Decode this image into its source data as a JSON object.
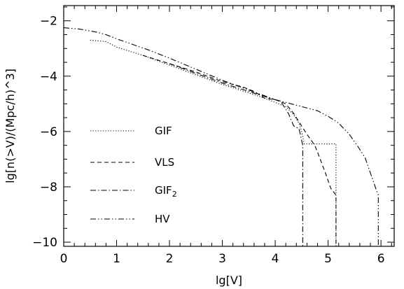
{
  "chart_data": {
    "type": "line",
    "title": "",
    "xlabel": "lg[V]",
    "ylabel": "lg[n(>V)/(Mpc/h)^3]",
    "xlim": [
      0,
      6.25
    ],
    "ylim": [
      -10.15,
      -1.45
    ],
    "xticks": [
      0,
      1,
      2,
      3,
      4,
      5,
      6
    ],
    "xtick_labels": [
      "0",
      "1",
      "2",
      "3",
      "4",
      "5",
      "6"
    ],
    "yticks": [
      -10,
      -8,
      -6,
      -4,
      -2
    ],
    "ytick_labels": [
      "−10",
      "−8",
      "−6",
      "−4",
      "−2"
    ],
    "grid": false,
    "legend_position": "lower-left",
    "legend": [
      {
        "name": "GIF",
        "sub": ""
      },
      {
        "name": "VLS",
        "sub": ""
      },
      {
        "name": "GIF",
        "sub": "2"
      },
      {
        "name": "HV",
        "sub": ""
      }
    ],
    "series": [
      {
        "style": "dotted",
        "x": [
          0.5,
          0.8,
          1.0,
          1.5,
          2.0,
          2.5,
          3.0,
          3.5,
          3.8,
          4.0,
          4.2,
          4.35,
          4.45,
          4.5,
          4.55,
          5.15,
          5.15
        ],
        "y": [
          -2.7,
          -2.75,
          -2.95,
          -3.25,
          -3.6,
          -3.95,
          -4.3,
          -4.6,
          -4.8,
          -4.95,
          -5.1,
          -5.4,
          -5.7,
          -6.0,
          -6.45,
          -6.45,
          -10.15
        ]
      },
      {
        "style": "dashed",
        "x": [
          1.5,
          2.0,
          2.5,
          3.0,
          3.4,
          3.6,
          3.8,
          4.0,
          4.2,
          4.35,
          4.5,
          4.6,
          4.75,
          4.85,
          4.95,
          5.05,
          5.15,
          5.15
        ],
        "y": [
          -3.25,
          -3.55,
          -3.85,
          -4.2,
          -4.4,
          -4.55,
          -4.8,
          -4.85,
          -5.0,
          -5.35,
          -5.8,
          -6.1,
          -6.5,
          -7.0,
          -7.5,
          -8.05,
          -8.3,
          -10.15
        ]
      },
      {
        "style": "dash-dot",
        "x": [
          2.0,
          2.5,
          3.0,
          3.5,
          3.9,
          4.1,
          4.25,
          4.35,
          4.45,
          4.52,
          4.52
        ],
        "y": [
          -3.55,
          -3.9,
          -4.25,
          -4.55,
          -4.8,
          -4.9,
          -5.35,
          -5.8,
          -5.9,
          -6.5,
          -10.15
        ]
      },
      {
        "style": "dash-dot-dot",
        "x": [
          0.0,
          0.3,
          0.6,
          0.8,
          1.0,
          1.3,
          1.6,
          2.0,
          2.5,
          3.0,
          3.5,
          4.0,
          4.5,
          4.8,
          5.0,
          5.2,
          5.4,
          5.55,
          5.7,
          5.8,
          5.9,
          5.95,
          5.95
        ],
        "y": [
          -2.25,
          -2.3,
          -2.4,
          -2.5,
          -2.65,
          -2.85,
          -3.05,
          -3.35,
          -3.75,
          -4.15,
          -4.5,
          -4.85,
          -5.1,
          -5.25,
          -5.45,
          -5.7,
          -6.1,
          -6.5,
          -6.95,
          -7.5,
          -8.05,
          -8.3,
          -10.15
        ]
      }
    ]
  }
}
